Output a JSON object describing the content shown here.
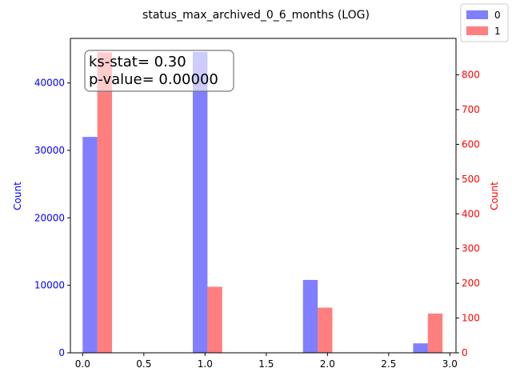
{
  "chart_data": {
    "type": "bar",
    "title": "status_max_archived_0_6_months (LOG)",
    "xlabel": "",
    "xlim": [
      -0.1,
      3.05
    ],
    "x_ticks": [
      "0.0",
      "0.5",
      "1.0",
      "1.5",
      "2.0",
      "2.5",
      "3.0"
    ],
    "left_axis": {
      "label": "Count",
      "color": "#0000ff",
      "ylim": [
        0,
        46600
      ],
      "ticks": [
        "0",
        "10000",
        "20000",
        "30000",
        "40000"
      ]
    },
    "right_axis": {
      "label": "Count",
      "color": "#ff0000",
      "ylim": [
        0,
        905
      ],
      "ticks": [
        "0",
        "100",
        "200",
        "300",
        "400",
        "500",
        "600",
        "700",
        "800"
      ]
    },
    "series": [
      {
        "name": "0",
        "axis": "left",
        "color": "#0000ff",
        "alpha": 0.5,
        "bins": [
          [
            0.0,
            0.12
          ],
          [
            0.9,
            1.02
          ],
          [
            1.8,
            1.92
          ],
          [
            2.7,
            2.82
          ]
        ],
        "values": [
          32000,
          44600,
          10800,
          1400
        ]
      },
      {
        "name": "1",
        "axis": "right",
        "color": "#ff0000",
        "alpha": 0.5,
        "bins": [
          [
            0.12,
            0.24
          ],
          [
            1.02,
            1.14
          ],
          [
            1.92,
            2.04
          ],
          [
            2.82,
            2.94
          ]
        ],
        "values": [
          865,
          190,
          130,
          113
        ]
      }
    ],
    "annotation": [
      "ks-stat= 0.30",
      "p-value= 0.00000"
    ],
    "legend": {
      "placement": "top-right outside",
      "entries": [
        "0",
        "1"
      ]
    },
    "grid": false
  }
}
